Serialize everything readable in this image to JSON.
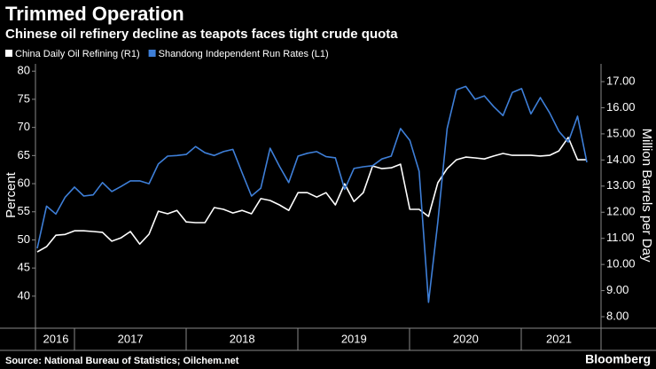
{
  "chart_data": {
    "type": "line",
    "title": "Trimmed Operation",
    "subtitle": "Chinese oil refinery decline as teapots faces tight crude quota",
    "ylabel": "Percent",
    "y2label": "Million Barrels per Day",
    "source": "Source: National Bureau of Statistics; Oilchem.net",
    "brand": "Bloomberg",
    "categories": [
      null,
      null,
      "2016",
      null,
      null,
      null,
      null,
      null,
      null,
      null,
      "2017",
      null,
      null,
      null,
      null,
      null,
      null,
      null,
      null,
      null,
      null,
      null,
      "2018",
      null,
      null,
      null,
      null,
      null,
      null,
      null,
      null,
      null,
      null,
      null,
      "2019",
      null,
      null,
      null,
      null,
      null,
      null,
      null,
      null,
      null,
      null,
      null,
      "2020",
      null,
      null,
      null,
      null,
      null,
      null,
      null,
      null,
      null,
      "2021",
      null,
      null,
      null
    ],
    "series": [
      {
        "name": "China Daily Oil Refining (R1)",
        "color": "#ffffff",
        "axis": "y2",
        "values": [
          10.48,
          10.68,
          11.12,
          11.15,
          11.29,
          11.29,
          11.26,
          11.23,
          10.89,
          11.02,
          11.26,
          10.78,
          11.16,
          12.04,
          11.94,
          12.07,
          11.63,
          11.6,
          11.6,
          12.18,
          12.11,
          11.97,
          12.07,
          11.94,
          12.52,
          12.45,
          12.28,
          12.07,
          12.75,
          12.75,
          12.58,
          12.75,
          12.28,
          13.09,
          12.41,
          12.75,
          13.77,
          13.67,
          13.7,
          13.84,
          12.11,
          12.11,
          11.84,
          13.13,
          13.67,
          14.01,
          14.11,
          14.08,
          14.04,
          14.15,
          14.25,
          14.18,
          14.18,
          14.18,
          14.15,
          14.18,
          14.35,
          14.86,
          14.01,
          14.01
        ]
      },
      {
        "name": "Shandong Independent Run Rates (L1)",
        "color": "#3e7fd8",
        "values": [
          48.5,
          56,
          54.6,
          57.6,
          59.4,
          57.8,
          58,
          60.2,
          58.6,
          59.5,
          60.5,
          60.5,
          60,
          63.5,
          64.9,
          65,
          65.2,
          66.6,
          65.5,
          65,
          65.7,
          66.1,
          61.9,
          57.8,
          59.2,
          66.3,
          63.1,
          60.2,
          64.9,
          65.4,
          65.7,
          64.8,
          64.6,
          59,
          62.7,
          63,
          63.2,
          64.4,
          64.9,
          69.8,
          67.7,
          62.2,
          38.9,
          53.2,
          69.8,
          76.7,
          77.3,
          75,
          75.6,
          73.7,
          72.1,
          76.2,
          76.9,
          72.4,
          75.3,
          72.6,
          69.3,
          67.4,
          72,
          63.8
        ]
      }
    ],
    "ylim": [
      34.3,
      81.3
    ],
    "yticks": [
      40,
      45,
      50,
      55,
      60,
      65,
      70,
      75,
      80
    ],
    "y2lim": [
      7.56,
      17.68
    ],
    "y2ticks": [
      {
        "value": 8,
        "label": "8.00"
      },
      {
        "value": 9,
        "label": "9.00"
      },
      {
        "value": 10,
        "label": "10.00"
      },
      {
        "value": 11,
        "label": "11.00"
      },
      {
        "value": 12,
        "label": "12.00"
      },
      {
        "value": 13,
        "label": "13.00"
      },
      {
        "value": 14,
        "label": "14.00"
      },
      {
        "value": 15,
        "label": "15.00"
      },
      {
        "value": 16,
        "label": "16.00"
      },
      {
        "value": 17,
        "label": "17.00"
      }
    ]
  }
}
